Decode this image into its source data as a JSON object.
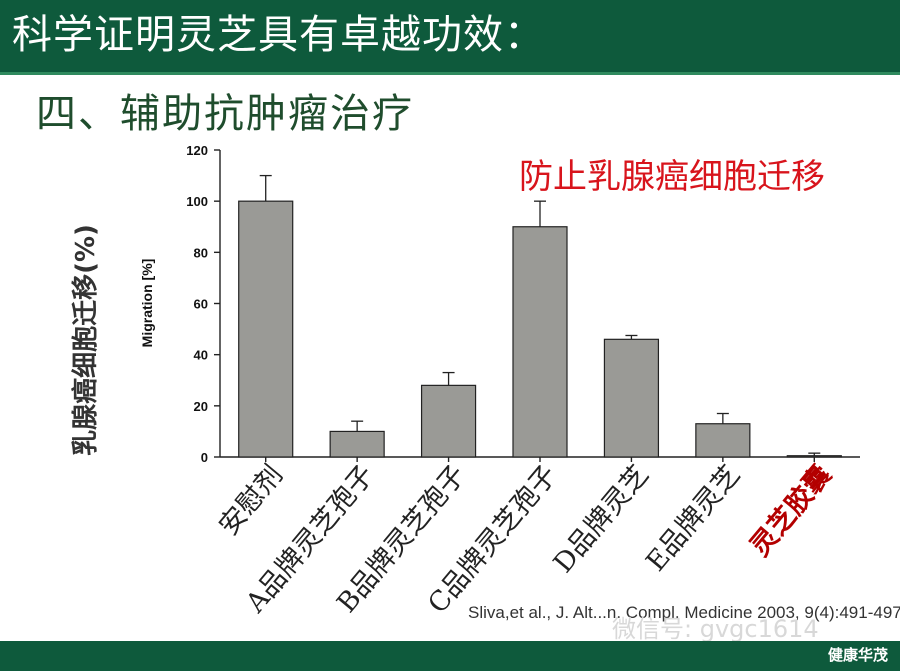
{
  "slide": {
    "title": "科学证明灵芝具有卓越功效：",
    "subtitle": "四、辅助抗肿瘤治疗",
    "brand": "健康华茂"
  },
  "chart_data": {
    "type": "bar",
    "title": "防止乳腺癌细胞迁移",
    "ylabel": "Migration [%]",
    "ylabel_outer": "乳腺癌细胞迁移(%)",
    "ylim": [
      0,
      120
    ],
    "yticks": [
      0,
      20,
      40,
      60,
      80,
      100,
      120
    ],
    "categories": [
      "安慰剂",
      "A品牌灵芝孢子",
      "B品牌灵芝孢子",
      "C品牌灵芝孢子",
      "D品牌灵芝",
      "E品牌灵芝",
      "灵芝胶囊"
    ],
    "values": [
      100,
      10,
      28,
      90,
      46,
      13,
      0.5
    ],
    "error_upper": [
      110,
      14,
      33,
      100,
      47.5,
      17,
      1.5
    ],
    "highlight_category": "灵芝胶囊",
    "bar_color": "#9a9a96",
    "highlight_color": "#b30000",
    "annotation_color": "#d8141c",
    "citation": "Sliva,et al., J. Alt...n. Compl. Medicine 2003, 9(4):491-497",
    "watermark": "微信号: gvgc1614"
  }
}
